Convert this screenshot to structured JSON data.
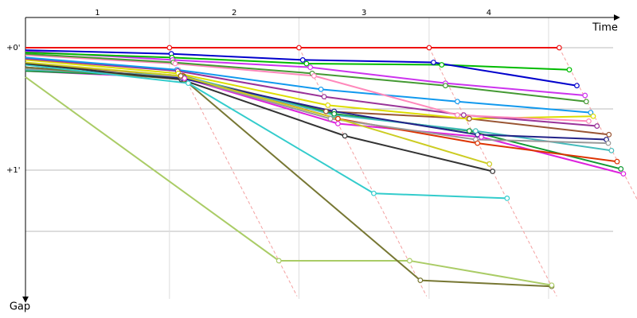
{
  "chart_data": {
    "type": "line",
    "x_label": "Time",
    "y_label": "Gap",
    "xlim": [
      0,
      9.6
    ],
    "ylim": [
      -0.25,
      2.03
    ],
    "yticks": [
      {
        "value": 0,
        "label": "+0'"
      },
      {
        "value": 1,
        "label": "+1'"
      }
    ],
    "ygrid": [
      0,
      0.5,
      1,
      1.5
    ],
    "lap_lines": [
      2.29,
      4.35,
      6.42,
      8.32
    ],
    "lap_labels": [
      "1",
      "2",
      "3",
      "4"
    ],
    "series": [
      {
        "color": "#ee1111",
        "x": [
          0,
          2.29,
          4.35,
          6.42,
          8.49
        ],
        "values": [
          0,
          0,
          0,
          0,
          0
        ]
      },
      {
        "color": "#0000cc",
        "x": [
          0,
          2.32,
          4.41,
          6.49,
          8.77
        ],
        "values": [
          0.02,
          0.05,
          0.1,
          0.12,
          0.31
        ]
      },
      {
        "color": "#00bb00",
        "x": [
          0,
          2.33,
          4.47,
          6.62,
          8.65
        ],
        "values": [
          0.04,
          0.08,
          0.13,
          0.14,
          0.18
        ]
      },
      {
        "color": "#cc33ee",
        "x": [
          0,
          2.34,
          4.53,
          6.68,
          8.9
        ],
        "values": [
          0.03,
          0.1,
          0.16,
          0.29,
          0.39
        ]
      },
      {
        "color": "#449933",
        "x": [
          0,
          2.35,
          4.56,
          6.68,
          8.92
        ],
        "values": [
          0.05,
          0.12,
          0.21,
          0.31,
          0.44
        ]
      },
      {
        "color": "#ff88bb",
        "x": [
          0,
          2.38,
          4.59,
          6.87,
          8.96
        ],
        "values": [
          0.06,
          0.13,
          0.23,
          0.55,
          0.6
        ]
      },
      {
        "color": "#1199ee",
        "x": [
          0,
          2.41,
          4.7,
          6.87,
          8.99
        ],
        "values": [
          0.08,
          0.18,
          0.34,
          0.44,
          0.53
        ]
      },
      {
        "color": "#993399",
        "x": [
          0,
          2.42,
          4.75,
          6.97,
          9.09
        ],
        "values": [
          0.09,
          0.19,
          0.4,
          0.55,
          0.64
        ]
      },
      {
        "color": "#dddd00",
        "x": [
          0,
          2.43,
          4.81,
          7.04,
          9.03
        ],
        "values": [
          0.1,
          0.21,
          0.47,
          0.58,
          0.56
        ]
      },
      {
        "color": "#cccc22",
        "x": [
          0,
          2.46,
          4.97,
          7.38
        ],
        "values": [
          0.12,
          0.23,
          0.58,
          0.95
        ]
      },
      {
        "color": "#333333",
        "x": [
          0,
          2.48,
          5.08,
          7.43
        ],
        "values": [
          0.13,
          0.26,
          0.72,
          1.01
        ]
      },
      {
        "color": "#33cccc",
        "x": [
          0,
          2.59,
          5.54,
          7.66
        ],
        "values": [
          0.14,
          0.29,
          1.19,
          1.23
        ]
      },
      {
        "color": "#777733",
        "x": [
          0,
          2.52,
          6.28,
          8.37
        ],
        "values": [
          0.16,
          0.26,
          1.9,
          1.95
        ]
      },
      {
        "color": "#aacc66",
        "x": [
          0,
          4.03,
          6.11,
          8.37
        ],
        "values": [
          0.24,
          1.74,
          1.74,
          1.94
        ]
      },
      {
        "color": "#222288",
        "x": [
          0,
          2.49,
          4.91,
          7.19,
          9.24
        ],
        "values": [
          0.16,
          0.25,
          0.52,
          0.71,
          0.75
        ]
      },
      {
        "color": "#999999",
        "x": [
          0,
          2.48,
          4.85,
          7.16,
          9.27
        ],
        "values": [
          0.17,
          0.24,
          0.58,
          0.75,
          0.78
        ]
      },
      {
        "color": "#44bbbb",
        "x": [
          0,
          2.49,
          4.91,
          7.16,
          9.32
        ],
        "values": [
          0.18,
          0.23,
          0.55,
          0.68,
          0.84
        ]
      },
      {
        "color": "#dd3300",
        "x": [
          0,
          2.51,
          4.97,
          7.19,
          9.41
        ],
        "values": [
          0.18,
          0.23,
          0.58,
          0.78,
          0.93
        ]
      },
      {
        "color": "#119933",
        "x": [
          0,
          2.52,
          4.91,
          7.06,
          9.47
        ],
        "values": [
          0.19,
          0.24,
          0.54,
          0.68,
          0.99
        ]
      },
      {
        "color": "#dd22dd",
        "x": [
          0,
          2.53,
          4.97,
          7.25,
          9.51
        ],
        "values": [
          0.19,
          0.25,
          0.62,
          0.73,
          1.03
        ]
      },
      {
        "color": "#995533",
        "x": [
          0,
          2.47,
          4.78,
          7.06,
          9.28
        ],
        "values": [
          0.13,
          0.23,
          0.52,
          0.58,
          0.71
        ]
      }
    ]
  }
}
